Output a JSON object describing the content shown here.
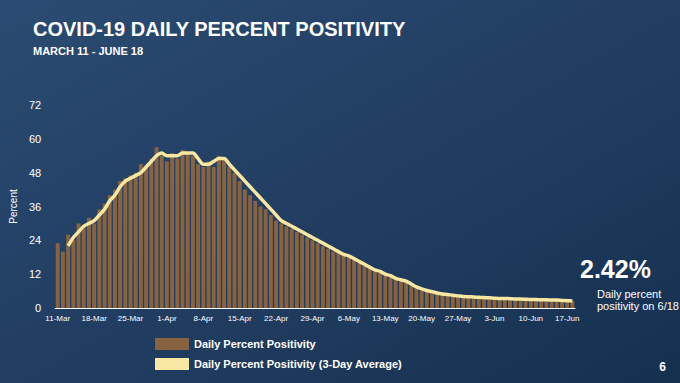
{
  "chart_data": {
    "type": "bar",
    "title": "COVID-19 DAILY PERCENT POSITIVITY",
    "subtitle": "MARCH 11 - JUNE 18",
    "y_label": "Percent",
    "categories": [
      "11-Mar",
      null,
      null,
      null,
      null,
      null,
      null,
      "18-Mar",
      null,
      null,
      null,
      null,
      null,
      null,
      "25-Mar",
      null,
      null,
      null,
      null,
      null,
      null,
      "1-Apr",
      null,
      null,
      null,
      null,
      null,
      null,
      "8-Apr",
      null,
      null,
      null,
      null,
      null,
      null,
      "15-Apr",
      null,
      null,
      null,
      null,
      null,
      null,
      "22-Apr",
      null,
      null,
      null,
      null,
      null,
      null,
      "29-Apr",
      null,
      null,
      null,
      null,
      null,
      null,
      "6-May",
      null,
      null,
      null,
      null,
      null,
      null,
      "13-May",
      null,
      null,
      null,
      null,
      null,
      null,
      "20-May",
      null,
      null,
      null,
      null,
      null,
      null,
      "27-May",
      null,
      null,
      null,
      null,
      null,
      null,
      "3-Jun",
      null,
      null,
      null,
      null,
      null,
      null,
      "10-Jun",
      null,
      null,
      null,
      null,
      null,
      null,
      "17-Jun",
      null
    ],
    "series": [
      {
        "name": "Daily Percent Positivity",
        "type": "bar",
        "color": "#9a6a3c",
        "values": [
          23,
          20,
          26,
          24,
          30,
          29,
          32,
          30,
          35,
          37,
          40,
          42,
          45,
          46,
          47,
          48,
          51,
          50,
          53,
          57,
          54,
          52,
          55,
          53,
          56,
          55,
          54,
          51,
          50,
          52,
          50,
          54,
          53,
          50,
          48,
          45,
          42,
          40,
          38,
          36,
          35,
          33,
          31,
          30,
          29,
          28,
          27,
          26,
          25,
          24,
          23,
          22,
          21,
          20,
          20,
          19,
          18,
          17,
          16,
          15,
          14,
          13,
          12.5,
          12,
          11,
          10,
          9.5,
          9,
          8.5,
          7,
          6,
          6,
          5.5,
          5,
          5,
          4.5,
          4.3,
          4.2,
          4,
          4,
          3.8,
          3.7,
          3.6,
          3.5,
          3.4,
          3.3,
          3.5,
          3.2,
          3.1,
          3.3,
          3.0,
          3.1,
          2.9,
          3.0,
          2.8,
          2.9,
          2.7,
          2.6,
          2.5,
          2.42
        ]
      },
      {
        "name": "Daily Percent Positivity (3-Day Average)",
        "type": "line",
        "color": "#f7e7a1",
        "values": [
          null,
          null,
          22,
          25,
          27,
          29,
          30,
          31,
          33,
          35,
          38,
          40,
          43,
          45,
          46,
          47,
          48,
          50,
          52,
          54,
          55,
          54,
          54,
          54,
          55,
          55,
          55,
          53,
          51,
          51,
          52,
          53,
          53,
          51,
          49,
          47,
          45,
          43,
          41,
          39,
          37,
          35,
          33,
          31,
          30,
          29,
          28,
          27,
          26,
          25,
          24,
          23,
          22,
          21,
          20,
          19,
          18.5,
          17.5,
          16.5,
          15.5,
          14.5,
          13.5,
          13,
          12,
          11.5,
          10.5,
          10,
          9.5,
          8.5,
          7.5,
          6.8,
          6.2,
          5.8,
          5.3,
          5,
          4.8,
          4.5,
          4.3,
          4.1,
          4,
          3.9,
          3.8,
          3.7,
          3.6,
          3.5,
          3.4,
          3.4,
          3.3,
          3.2,
          3.2,
          3.1,
          3.0,
          3.0,
          2.9,
          2.9,
          2.8,
          2.8,
          2.7,
          2.6,
          2.5
        ]
      }
    ],
    "ylim": [
      0,
      72
    ],
    "yticks": [
      0,
      12,
      24,
      36,
      48,
      60,
      72
    ],
    "grid": false,
    "legend": "bottom",
    "annotations": [
      "2.42%",
      "Daily percent positivity on 6/18"
    ],
    "footer": "6"
  }
}
